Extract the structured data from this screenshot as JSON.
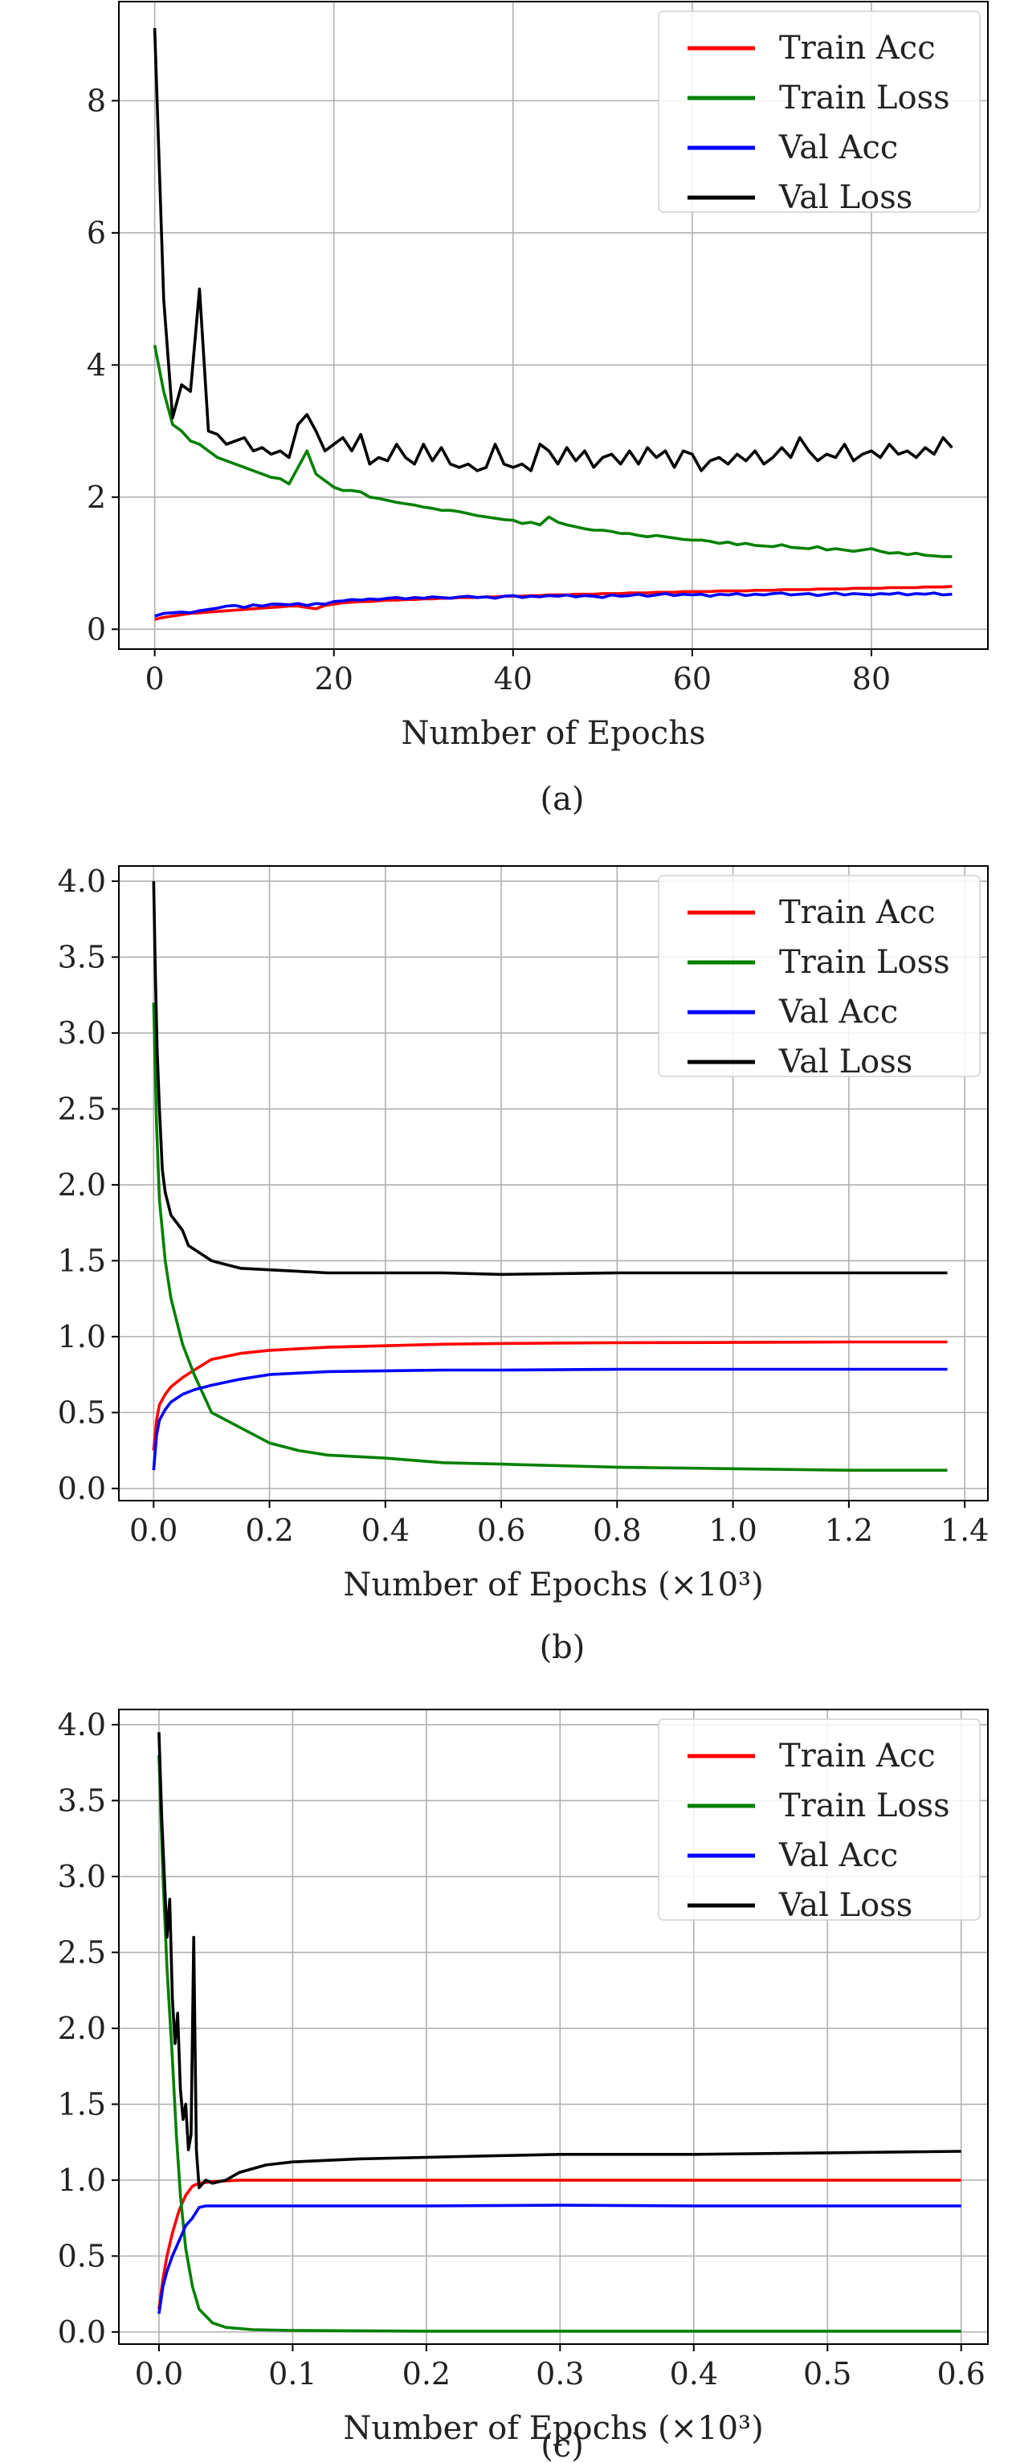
{
  "figure": {
    "panels": [
      "(a)",
      "(b)",
      "(c)"
    ]
  },
  "chart_data": [
    {
      "type": "line",
      "caption": "(a)",
      "title": "",
      "xlabel": "Number of Epochs",
      "ylabel": "",
      "xlim": [
        -4,
        93
      ],
      "ylim": [
        -0.3,
        9.5
      ],
      "xticks": [
        0,
        20,
        40,
        60,
        80
      ],
      "xtick_labels": [
        "0",
        "20",
        "40",
        "60",
        "80"
      ],
      "yticks": [
        0,
        2,
        4,
        6,
        8
      ],
      "ytick_labels": [
        "0",
        "2",
        "4",
        "6",
        "8"
      ],
      "grid": true,
      "legend_position": "top-right",
      "x_start": 0,
      "x_step": 1,
      "series": [
        {
          "name": "Train Acc",
          "color": "#ff0000",
          "values": [
            0.15,
            0.18,
            0.2,
            0.22,
            0.24,
            0.25,
            0.26,
            0.27,
            0.28,
            0.29,
            0.3,
            0.31,
            0.32,
            0.33,
            0.34,
            0.35,
            0.35,
            0.33,
            0.31,
            0.36,
            0.38,
            0.4,
            0.41,
            0.42,
            0.42,
            0.43,
            0.44,
            0.44,
            0.45,
            0.45,
            0.46,
            0.46,
            0.47,
            0.47,
            0.48,
            0.48,
            0.48,
            0.49,
            0.49,
            0.5,
            0.5,
            0.5,
            0.51,
            0.51,
            0.52,
            0.52,
            0.52,
            0.53,
            0.53,
            0.53,
            0.54,
            0.54,
            0.54,
            0.55,
            0.55,
            0.55,
            0.56,
            0.56,
            0.56,
            0.57,
            0.57,
            0.57,
            0.57,
            0.58,
            0.58,
            0.58,
            0.58,
            0.59,
            0.59,
            0.59,
            0.6,
            0.6,
            0.6,
            0.6,
            0.61,
            0.61,
            0.61,
            0.61,
            0.62,
            0.62,
            0.62,
            0.62,
            0.63,
            0.63,
            0.63,
            0.63,
            0.64,
            0.64,
            0.64,
            0.65
          ]
        },
        {
          "name": "Train Loss",
          "color": "#008000",
          "values": [
            4.3,
            3.6,
            3.1,
            3.0,
            2.85,
            2.8,
            2.7,
            2.6,
            2.55,
            2.5,
            2.45,
            2.4,
            2.35,
            2.3,
            2.28,
            2.2,
            2.45,
            2.7,
            2.35,
            2.25,
            2.15,
            2.1,
            2.1,
            2.08,
            2.0,
            1.98,
            1.95,
            1.92,
            1.9,
            1.88,
            1.85,
            1.83,
            1.8,
            1.8,
            1.78,
            1.75,
            1.72,
            1.7,
            1.68,
            1.66,
            1.65,
            1.6,
            1.62,
            1.58,
            1.7,
            1.62,
            1.58,
            1.55,
            1.52,
            1.5,
            1.5,
            1.48,
            1.45,
            1.45,
            1.42,
            1.4,
            1.42,
            1.4,
            1.38,
            1.36,
            1.35,
            1.35,
            1.33,
            1.3,
            1.32,
            1.28,
            1.3,
            1.27,
            1.26,
            1.25,
            1.28,
            1.24,
            1.23,
            1.22,
            1.25,
            1.2,
            1.22,
            1.2,
            1.18,
            1.2,
            1.22,
            1.18,
            1.15,
            1.16,
            1.13,
            1.15,
            1.12,
            1.11,
            1.1,
            1.1
          ]
        },
        {
          "name": "Val Acc",
          "color": "#0000ff",
          "values": [
            0.2,
            0.24,
            0.25,
            0.26,
            0.25,
            0.28,
            0.3,
            0.32,
            0.35,
            0.36,
            0.33,
            0.37,
            0.35,
            0.38,
            0.38,
            0.37,
            0.39,
            0.36,
            0.39,
            0.38,
            0.42,
            0.43,
            0.45,
            0.44,
            0.46,
            0.45,
            0.47,
            0.48,
            0.46,
            0.48,
            0.47,
            0.49,
            0.48,
            0.47,
            0.49,
            0.5,
            0.48,
            0.49,
            0.47,
            0.5,
            0.51,
            0.48,
            0.5,
            0.49,
            0.51,
            0.5,
            0.52,
            0.49,
            0.51,
            0.5,
            0.48,
            0.52,
            0.5,
            0.51,
            0.53,
            0.5,
            0.52,
            0.54,
            0.51,
            0.53,
            0.52,
            0.53,
            0.5,
            0.53,
            0.52,
            0.54,
            0.51,
            0.53,
            0.52,
            0.54,
            0.55,
            0.52,
            0.53,
            0.54,
            0.51,
            0.53,
            0.55,
            0.52,
            0.54,
            0.53,
            0.52,
            0.54,
            0.53,
            0.55,
            0.52,
            0.54,
            0.53,
            0.55,
            0.52,
            0.53
          ]
        },
        {
          "name": "Val Loss",
          "color": "#000000",
          "values": [
            9.1,
            5.0,
            3.2,
            3.7,
            3.6,
            5.15,
            3.0,
            2.95,
            2.8,
            2.85,
            2.9,
            2.7,
            2.75,
            2.65,
            2.7,
            2.6,
            3.1,
            3.25,
            3.0,
            2.7,
            2.8,
            2.9,
            2.7,
            2.95,
            2.5,
            2.6,
            2.55,
            2.8,
            2.6,
            2.5,
            2.8,
            2.55,
            2.75,
            2.5,
            2.45,
            2.5,
            2.4,
            2.45,
            2.8,
            2.5,
            2.45,
            2.5,
            2.4,
            2.8,
            2.7,
            2.5,
            2.75,
            2.55,
            2.7,
            2.45,
            2.6,
            2.65,
            2.5,
            2.7,
            2.5,
            2.75,
            2.6,
            2.7,
            2.45,
            2.7,
            2.65,
            2.4,
            2.55,
            2.6,
            2.5,
            2.65,
            2.55,
            2.7,
            2.5,
            2.6,
            2.75,
            2.6,
            2.9,
            2.7,
            2.55,
            2.65,
            2.6,
            2.8,
            2.55,
            2.65,
            2.7,
            2.6,
            2.8,
            2.65,
            2.7,
            2.6,
            2.75,
            2.65,
            2.9,
            2.75
          ]
        }
      ]
    },
    {
      "type": "line",
      "caption": "(b)",
      "title": "",
      "xlabel": "Number of Epochs (×10³)",
      "ylabel": "",
      "xlim": [
        -0.06,
        1.44
      ],
      "ylim": [
        -0.08,
        4.1
      ],
      "xticks": [
        0.0,
        0.2,
        0.4,
        0.6,
        0.8,
        1.0,
        1.2,
        1.4
      ],
      "xtick_labels": [
        "0.0",
        "0.2",
        "0.4",
        "0.6",
        "0.8",
        "1.0",
        "1.2",
        "1.4"
      ],
      "yticks": [
        0.0,
        0.5,
        1.0,
        1.5,
        2.0,
        2.5,
        3.0,
        3.5,
        4.0
      ],
      "ytick_labels": [
        "0.0",
        "0.5",
        "1.0",
        "1.5",
        "2.0",
        "2.5",
        "3.0",
        "3.5",
        "4.0"
      ],
      "grid": true,
      "legend_position": "top-right",
      "series": [
        {
          "name": "Train Acc",
          "color": "#ff0000",
          "x": [
            0,
            0.005,
            0.01,
            0.02,
            0.03,
            0.05,
            0.07,
            0.1,
            0.15,
            0.2,
            0.3,
            0.4,
            0.5,
            0.6,
            0.8,
            1.0,
            1.2,
            1.37
          ],
          "values": [
            0.25,
            0.45,
            0.55,
            0.62,
            0.67,
            0.73,
            0.78,
            0.85,
            0.89,
            0.91,
            0.93,
            0.94,
            0.95,
            0.955,
            0.96,
            0.962,
            0.965,
            0.965
          ]
        },
        {
          "name": "Train Loss",
          "color": "#008000",
          "x": [
            0,
            0.005,
            0.01,
            0.02,
            0.03,
            0.05,
            0.07,
            0.1,
            0.15,
            0.2,
            0.25,
            0.3,
            0.4,
            0.5,
            0.6,
            0.8,
            1.0,
            1.2,
            1.37
          ],
          "values": [
            3.2,
            2.4,
            1.9,
            1.5,
            1.25,
            0.95,
            0.75,
            0.5,
            0.4,
            0.3,
            0.25,
            0.22,
            0.2,
            0.17,
            0.16,
            0.14,
            0.13,
            0.12,
            0.12
          ]
        },
        {
          "name": "Val Acc",
          "color": "#0000ff",
          "x": [
            0,
            0.005,
            0.01,
            0.02,
            0.03,
            0.05,
            0.07,
            0.1,
            0.15,
            0.2,
            0.3,
            0.4,
            0.5,
            0.6,
            0.8,
            1.0,
            1.2,
            1.37
          ],
          "values": [
            0.12,
            0.35,
            0.45,
            0.52,
            0.57,
            0.62,
            0.65,
            0.68,
            0.72,
            0.75,
            0.77,
            0.775,
            0.78,
            0.78,
            0.785,
            0.785,
            0.785,
            0.785
          ]
        },
        {
          "name": "Val Loss",
          "color": "#000000",
          "x": [
            0,
            0.003,
            0.006,
            0.01,
            0.015,
            0.02,
            0.03,
            0.04,
            0.05,
            0.06,
            0.08,
            0.1,
            0.12,
            0.15,
            0.2,
            0.25,
            0.3,
            0.35,
            0.4,
            0.5,
            0.6,
            0.8,
            1.0,
            1.2,
            1.37
          ],
          "values": [
            4.0,
            3.4,
            2.9,
            2.5,
            2.1,
            1.95,
            1.8,
            1.75,
            1.7,
            1.6,
            1.55,
            1.5,
            1.48,
            1.45,
            1.44,
            1.43,
            1.42,
            1.42,
            1.42,
            1.42,
            1.41,
            1.42,
            1.42,
            1.42,
            1.42
          ]
        }
      ]
    },
    {
      "type": "line",
      "caption": "(c)",
      "title": "",
      "xlabel": "Number of Epochs (×10³)",
      "ylabel": "",
      "xlim": [
        -0.03,
        0.62
      ],
      "ylim": [
        -0.08,
        4.1
      ],
      "xticks": [
        0.0,
        0.1,
        0.2,
        0.3,
        0.4,
        0.5,
        0.6
      ],
      "xtick_labels": [
        "0.0",
        "0.1",
        "0.2",
        "0.3",
        "0.4",
        "0.5",
        "0.6"
      ],
      "yticks": [
        0.0,
        0.5,
        1.0,
        1.5,
        2.0,
        2.5,
        3.0,
        3.5,
        4.0
      ],
      "ytick_labels": [
        "0.0",
        "0.5",
        "1.0",
        "1.5",
        "2.0",
        "2.5",
        "3.0",
        "3.5",
        "4.0"
      ],
      "grid": true,
      "legend_position": "top-right",
      "series": [
        {
          "name": "Train Acc",
          "color": "#ff0000",
          "x": [
            0,
            0.003,
            0.006,
            0.01,
            0.015,
            0.02,
            0.025,
            0.03,
            0.04,
            0.06,
            0.1,
            0.2,
            0.3,
            0.4,
            0.5,
            0.6
          ],
          "values": [
            0.15,
            0.35,
            0.5,
            0.65,
            0.8,
            0.9,
            0.96,
            0.98,
            0.99,
            1.0,
            1.0,
            1.0,
            1.0,
            1.0,
            1.0,
            1.0
          ]
        },
        {
          "name": "Train Loss",
          "color": "#008000",
          "x": [
            0,
            0.003,
            0.006,
            0.01,
            0.013,
            0.016,
            0.02,
            0.025,
            0.03,
            0.04,
            0.05,
            0.07,
            0.1,
            0.2,
            0.3,
            0.4,
            0.5,
            0.6
          ],
          "values": [
            3.8,
            3.0,
            2.4,
            1.8,
            1.3,
            0.9,
            0.55,
            0.3,
            0.15,
            0.06,
            0.03,
            0.015,
            0.01,
            0.005,
            0.005,
            0.005,
            0.005,
            0.005
          ]
        },
        {
          "name": "Val Acc",
          "color": "#0000ff",
          "x": [
            0,
            0.003,
            0.006,
            0.01,
            0.015,
            0.02,
            0.025,
            0.03,
            0.035,
            0.05,
            0.1,
            0.2,
            0.3,
            0.4,
            0.5,
            0.6
          ],
          "values": [
            0.12,
            0.3,
            0.4,
            0.5,
            0.6,
            0.7,
            0.75,
            0.82,
            0.83,
            0.83,
            0.83,
            0.83,
            0.835,
            0.83,
            0.83,
            0.83
          ]
        },
        {
          "name": "Val Loss",
          "color": "#000000",
          "x": [
            0,
            0.002,
            0.004,
            0.006,
            0.008,
            0.01,
            0.012,
            0.014,
            0.016,
            0.018,
            0.02,
            0.022,
            0.024,
            0.026,
            0.028,
            0.03,
            0.035,
            0.04,
            0.05,
            0.06,
            0.08,
            0.1,
            0.15,
            0.2,
            0.25,
            0.3,
            0.4,
            0.5,
            0.6
          ],
          "values": [
            3.95,
            3.4,
            3.0,
            2.6,
            2.85,
            2.2,
            1.9,
            2.1,
            1.6,
            1.4,
            1.5,
            1.2,
            1.3,
            2.6,
            1.2,
            0.95,
            1.0,
            0.98,
            1.0,
            1.05,
            1.1,
            1.12,
            1.14,
            1.15,
            1.16,
            1.17,
            1.17,
            1.18,
            1.19
          ]
        }
      ]
    }
  ]
}
